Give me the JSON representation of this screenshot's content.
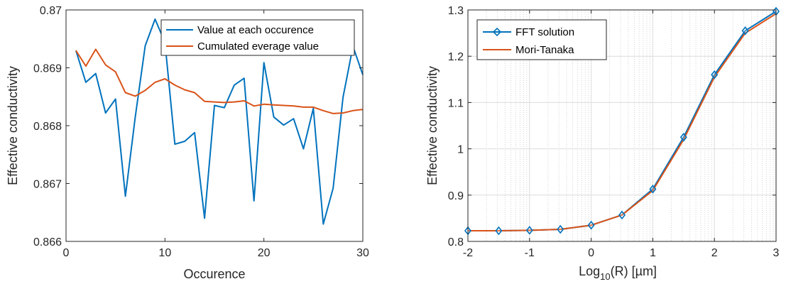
{
  "chart_data": [
    {
      "type": "line",
      "xlabel": "Occurence",
      "ylabel": "Effective conductivity",
      "xlim": [
        0,
        30
      ],
      "ylim": [
        0.866,
        0.87
      ],
      "xticks": [
        "0",
        "10",
        "20",
        "30"
      ],
      "yticks": [
        "0.866",
        "0.867",
        "0.868",
        "0.869",
        "0.87"
      ],
      "grid": false,
      "legend_position": "top-right",
      "series": [
        {
          "name": "Value at each occurence",
          "color": "#0072BD",
          "x": [
            1,
            2,
            3,
            4,
            5,
            6,
            7,
            8,
            9,
            10,
            11,
            12,
            13,
            14,
            15,
            16,
            17,
            18,
            19,
            20,
            21,
            22,
            23,
            24,
            25,
            26,
            27,
            28,
            29,
            30
          ],
          "y": [
            0.8693,
            0.86875,
            0.8689,
            0.86822,
            0.86846,
            0.86678,
            0.86815,
            0.86938,
            0.86984,
            0.86944,
            0.86768,
            0.86773,
            0.86788,
            0.8664,
            0.86835,
            0.86831,
            0.8687,
            0.86882,
            0.8667,
            0.86909,
            0.86815,
            0.86801,
            0.86812,
            0.8676,
            0.8683,
            0.8663,
            0.86692,
            0.86849,
            0.86937,
            0.86888
          ]
        },
        {
          "name": "Cumulated everage value",
          "color": "#D95319",
          "x": [
            1,
            2,
            3,
            4,
            5,
            6,
            7,
            8,
            9,
            10,
            11,
            12,
            13,
            14,
            15,
            16,
            17,
            18,
            19,
            20,
            21,
            22,
            23,
            24,
            25,
            26,
            27,
            28,
            29,
            30
          ],
          "y": [
            0.8693,
            0.86903,
            0.86932,
            0.86905,
            0.86893,
            0.86857,
            0.86851,
            0.86861,
            0.86875,
            0.86881,
            0.8687,
            0.86862,
            0.86857,
            0.86842,
            0.86841,
            0.8684,
            0.86841,
            0.86843,
            0.86834,
            0.86837,
            0.86836,
            0.86835,
            0.86834,
            0.86832,
            0.86832,
            0.86826,
            0.86821,
            0.86822,
            0.86826,
            0.86828
          ]
        }
      ]
    },
    {
      "type": "line",
      "xlabel_main": "Log",
      "xlabel_sub": "10",
      "xlabel_rest": "(R) [µm]",
      "ylabel": "Effective conductivity",
      "xlim": [
        -2,
        3
      ],
      "ylim": [
        0.8,
        1.3
      ],
      "xticks": [
        "-2",
        "-1",
        "0",
        "1",
        "2",
        "3"
      ],
      "yticks": [
        "0.8",
        "0.9",
        "1",
        "1.1",
        "1.2",
        "1.3"
      ],
      "grid": true,
      "legend_position": "top-left",
      "series": [
        {
          "name": "FFT solution",
          "color": "#0072BD",
          "marker": "diamond",
          "x": [
            -2,
            -1.5,
            -1,
            -0.5,
            0,
            0.5,
            1,
            1.5,
            2,
            2.5,
            3
          ],
          "y": [
            0.823,
            0.823,
            0.824,
            0.826,
            0.835,
            0.857,
            0.913,
            1.025,
            1.16,
            1.255,
            1.297
          ]
        },
        {
          "name": "Mori-Tanaka",
          "color": "#D95319",
          "x": [
            -2,
            -1.5,
            -1,
            -0.5,
            0,
            0.5,
            1,
            1.5,
            2,
            2.5,
            3
          ],
          "y": [
            0.823,
            0.823,
            0.824,
            0.826,
            0.835,
            0.857,
            0.91,
            1.02,
            1.155,
            1.25,
            1.292
          ]
        }
      ]
    }
  ]
}
